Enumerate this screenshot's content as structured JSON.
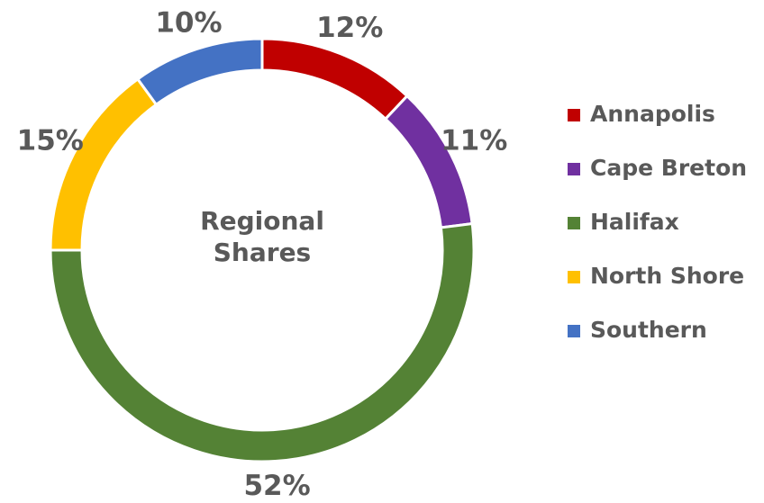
{
  "chart_data": {
    "type": "donut",
    "title": "Regional Shares",
    "categories": [
      "Annapolis",
      "Cape Breton",
      "Halifax",
      "North Shore",
      "Southern"
    ],
    "values": [
      12,
      11,
      52,
      15,
      10
    ],
    "value_labels": [
      "12%",
      "11%",
      "52%",
      "15%",
      "10%"
    ],
    "colors": [
      "#c00000",
      "#7030a0",
      "#548235",
      "#ffc000",
      "#4472c4"
    ],
    "legend": "right"
  }
}
